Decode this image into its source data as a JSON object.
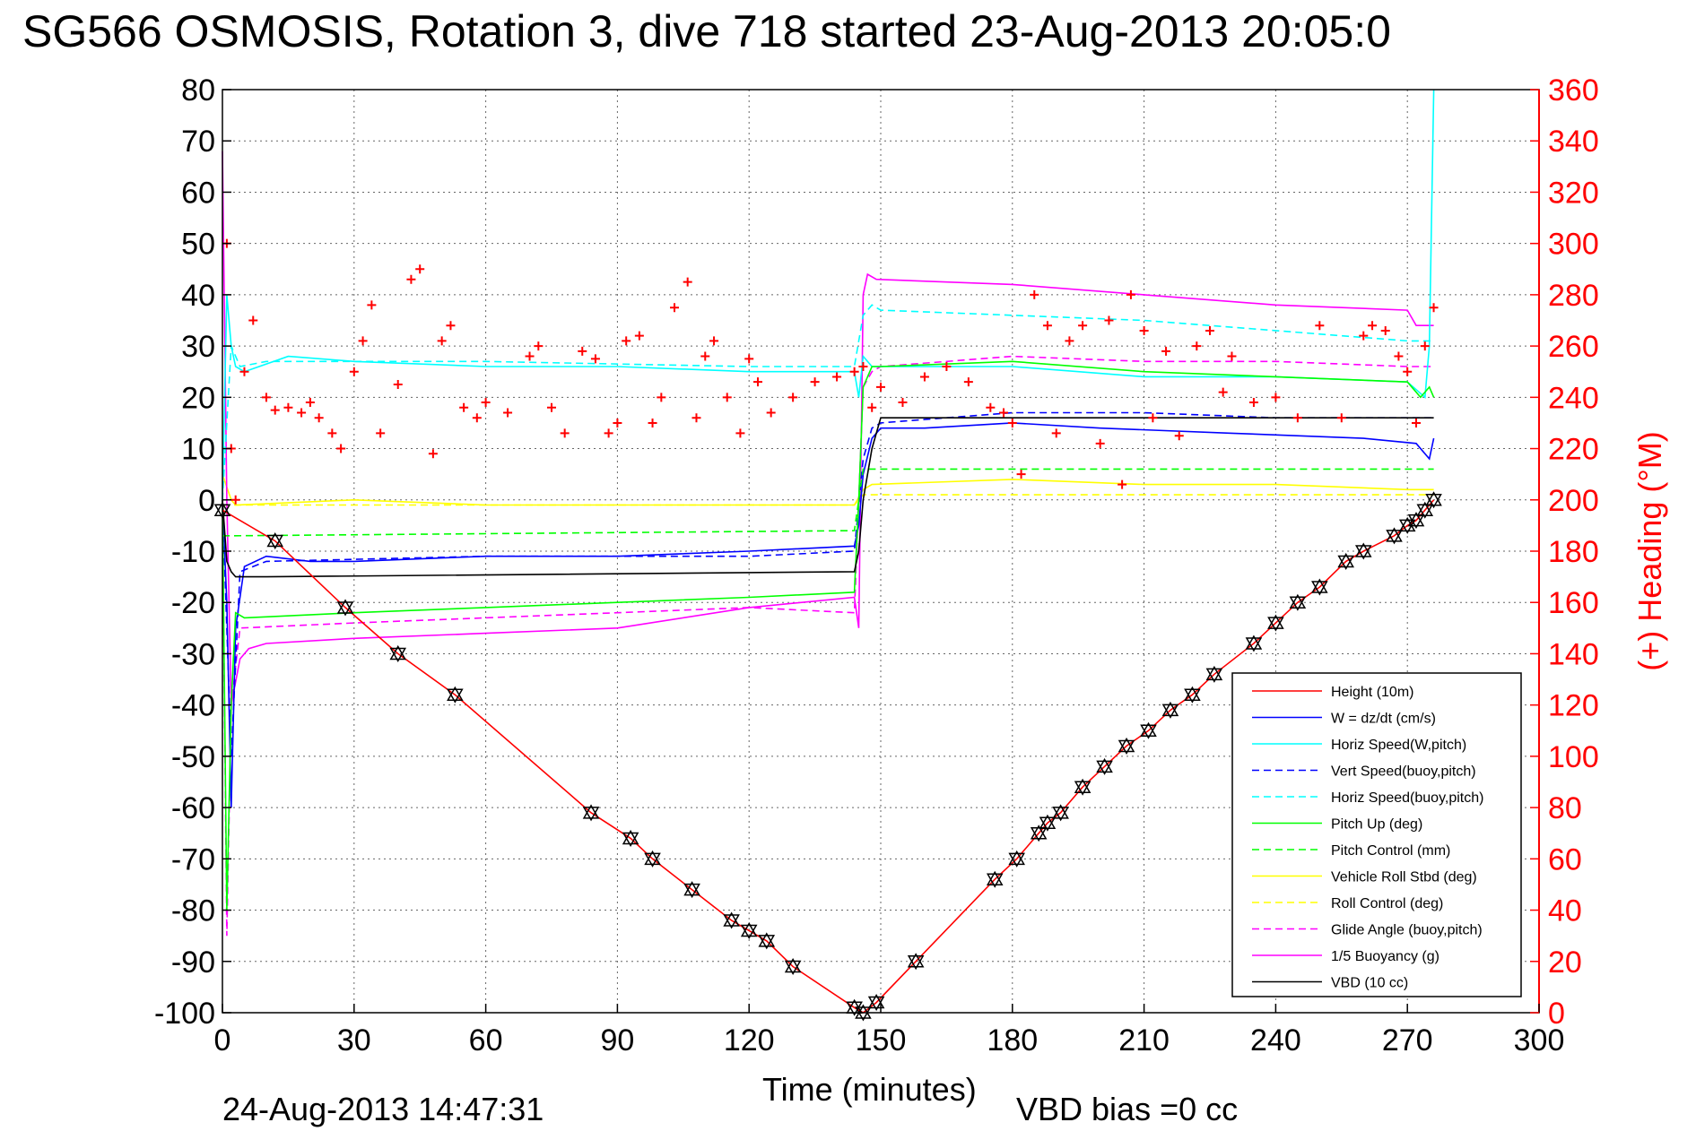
{
  "title": "SG566 OSMOSIS, Rotation 3, dive 718 started 23-Aug-2013 20:05:0",
  "footer": {
    "timestamp": "24-Aug-2013 14:47:31",
    "vbd_bias": "VBD bias =0 cc"
  },
  "chart_data": {
    "type": "line",
    "xlabel": "Time (minutes)",
    "ylabel": "",
    "y2label": "(+) Heading (°M)",
    "xlim": [
      0,
      300
    ],
    "ylim": [
      -100,
      80
    ],
    "y2lim": [
      0,
      360
    ],
    "xticks": [
      0,
      30,
      60,
      90,
      120,
      150,
      180,
      210,
      240,
      270,
      300
    ],
    "yticks": [
      -100,
      -90,
      -80,
      -70,
      -60,
      -50,
      -40,
      -30,
      -20,
      -10,
      0,
      10,
      20,
      30,
      40,
      50,
      60,
      70,
      80
    ],
    "y2ticks": [
      0,
      20,
      40,
      60,
      80,
      100,
      120,
      140,
      160,
      180,
      200,
      220,
      240,
      260,
      280,
      300,
      320,
      340,
      360
    ],
    "grid": true,
    "legend_position": "bottom-right",
    "colors": {
      "height": "#ff0000",
      "w": "#0000ff",
      "horiz_speed": "#00ffff",
      "pitch": "#00ff00",
      "roll": "#ffff00",
      "glide": "#ff00ff",
      "vbd": "#000000",
      "heading": "#ff0000"
    },
    "series": [
      {
        "name": "Height (10m)",
        "color": "#ff0000",
        "dash": "",
        "x": [
          0,
          12,
          28,
          40,
          53,
          84,
          93,
          98,
          107,
          116,
          120,
          124,
          130,
          144,
          146,
          149,
          158,
          176,
          181,
          186,
          188,
          191,
          196,
          201,
          206,
          211,
          216,
          221,
          226,
          235,
          240,
          245,
          250,
          256,
          260,
          267,
          270,
          272,
          274,
          276
        ],
        "y": [
          -2,
          -8,
          -21,
          -30,
          -38,
          -61,
          -66,
          -70,
          -76,
          -82,
          -84,
          -86,
          -91,
          -99,
          -100,
          -98,
          -90,
          -74,
          -70,
          -65,
          -63,
          -61,
          -56,
          -52,
          -48,
          -45,
          -41,
          -38,
          -34,
          -28,
          -24,
          -20,
          -17,
          -12,
          -10,
          -7,
          -5,
          -4,
          -2,
          0
        ]
      },
      {
        "name": "W = dz/dt (cm/s)",
        "color": "#0000ff",
        "dash": "",
        "x": [
          0,
          1,
          2,
          3,
          5,
          10,
          20,
          30,
          60,
          90,
          120,
          144,
          145,
          146,
          148,
          150,
          160,
          180,
          200,
          230,
          260,
          272,
          275,
          276
        ],
        "y": [
          0,
          -20,
          -60,
          -25,
          -13,
          -11,
          -12,
          -12,
          -11,
          -11,
          -10,
          -9,
          -5,
          5,
          12,
          14,
          14,
          15,
          14,
          13,
          12,
          11,
          8,
          12
        ]
      },
      {
        "name": "Horiz Speed(W,pitch)",
        "color": "#00ffff",
        "dash": "",
        "x": [
          0,
          1,
          2,
          3,
          5,
          15,
          30,
          60,
          90,
          120,
          144,
          145,
          146,
          148,
          150,
          180,
          210,
          240,
          270,
          274,
          275,
          276
        ],
        "y": [
          0,
          40,
          30,
          26,
          25,
          28,
          27,
          26,
          26,
          25,
          25,
          20,
          28,
          26,
          26,
          26,
          24,
          24,
          23,
          20,
          30,
          80
        ]
      },
      {
        "name": "Vert Speed(buoy,pitch)",
        "color": "#0000ff",
        "dash": "8,5",
        "x": [
          0,
          2,
          4,
          10,
          60,
          120,
          144,
          146,
          148,
          150,
          180,
          210,
          240,
          270,
          276
        ],
        "y": [
          0,
          -50,
          -14,
          -12,
          -11,
          -11,
          -10,
          8,
          14,
          15,
          17,
          17,
          16,
          16,
          16
        ]
      },
      {
        "name": "Horiz Speed(buoy,pitch)",
        "color": "#00ffff",
        "dash": "8,5",
        "x": [
          0,
          2,
          4,
          10,
          60,
          120,
          144,
          146,
          148,
          150,
          180,
          210,
          240,
          270,
          276
        ],
        "y": [
          0,
          30,
          26,
          27,
          27,
          26,
          26,
          36,
          38,
          37,
          36,
          35,
          33,
          31,
          31
        ]
      },
      {
        "name": "Pitch Up (deg)",
        "color": "#00ff00",
        "dash": "",
        "x": [
          0,
          1,
          2,
          3,
          5,
          30,
          60,
          90,
          120,
          144,
          145,
          146,
          148,
          150,
          180,
          210,
          240,
          270,
          273,
          275,
          276
        ],
        "y": [
          0,
          -80,
          -40,
          -22,
          -23,
          -22,
          -21,
          -20,
          -19,
          -18,
          0,
          22,
          26,
          26,
          27,
          25,
          24,
          23,
          20,
          22,
          20
        ]
      },
      {
        "name": "Pitch Control (mm)",
        "color": "#00ff00",
        "dash": "8,5",
        "x": [
          0,
          3,
          144,
          146,
          276
        ],
        "y": [
          -7,
          -7,
          -6,
          6,
          6
        ]
      },
      {
        "name": "Vehicle Roll Stbd (deg)",
        "color": "#ffff00",
        "dash": "",
        "x": [
          0,
          2,
          3,
          30,
          60,
          90,
          120,
          144,
          146,
          148,
          180,
          210,
          240,
          270,
          276
        ],
        "y": [
          5,
          0,
          -1,
          0,
          -1,
          -1,
          -1,
          -1,
          2,
          3,
          4,
          3,
          3,
          2,
          2
        ]
      },
      {
        "name": "Roll Control (deg)",
        "color": "#ffff00",
        "dash": "8,5",
        "x": [
          0,
          3,
          144,
          146,
          276
        ],
        "y": [
          -1,
          -1,
          -1,
          1,
          1
        ]
      },
      {
        "name": "Glide Angle (buoy,pitch)",
        "color": "#ff00ff",
        "dash": "8,5",
        "x": [
          0,
          1,
          2,
          4,
          30,
          60,
          90,
          120,
          144,
          146,
          148,
          150,
          180,
          210,
          240,
          270,
          276
        ],
        "y": [
          0,
          -85,
          -40,
          -25,
          -24,
          -23,
          -22,
          -21,
          -22,
          22,
          25,
          26,
          28,
          27,
          27,
          26,
          26
        ]
      },
      {
        "name": "1/5 Buoyancy (g)",
        "color": "#ff00ff",
        "dash": "",
        "x": [
          0,
          1,
          2,
          4,
          6,
          10,
          30,
          60,
          90,
          120,
          144,
          145,
          146,
          147,
          149,
          180,
          210,
          240,
          270,
          272,
          276
        ],
        "y": [
          68,
          0,
          -40,
          -31,
          -29,
          -28,
          -27,
          -26,
          -25,
          -21,
          -19,
          -25,
          40,
          44,
          43,
          42,
          40,
          38,
          37,
          34,
          34
        ]
      },
      {
        "name": "VBD (10 cc)",
        "color": "#000000",
        "dash": "",
        "x": [
          0,
          1,
          2,
          3,
          10,
          144,
          145,
          146,
          147,
          148,
          150,
          276
        ],
        "y": [
          0,
          -12,
          -14,
          -15,
          -15,
          -14,
          -10,
          0,
          5,
          10,
          16,
          16
        ]
      }
    ],
    "heading_markers": {
      "name": "(+) Heading (°M)",
      "x": [
        1,
        2,
        3,
        5,
        7,
        10,
        12,
        15,
        18,
        20,
        22,
        25,
        27,
        30,
        32,
        34,
        36,
        40,
        43,
        45,
        48,
        50,
        52,
        55,
        58,
        60,
        65,
        70,
        72,
        75,
        78,
        82,
        85,
        88,
        90,
        92,
        95,
        98,
        100,
        103,
        106,
        108,
        110,
        112,
        115,
        118,
        120,
        122,
        125,
        130,
        135,
        140,
        144,
        146,
        148,
        150,
        155,
        160,
        165,
        170,
        175,
        178,
        180,
        182,
        185,
        188,
        190,
        193,
        196,
        200,
        202,
        205,
        207,
        210,
        212,
        215,
        218,
        222,
        225,
        228,
        230,
        235,
        240,
        245,
        250,
        255,
        260,
        262,
        265,
        268,
        270,
        272,
        274,
        276
      ],
      "y": [
        300,
        220,
        200,
        250,
        270,
        240,
        235,
        236,
        234,
        238,
        232,
        226,
        220,
        250,
        262,
        276,
        226,
        245,
        286,
        290,
        218,
        262,
        268,
        236,
        232,
        238,
        234,
        256,
        260,
        236,
        226,
        258,
        255,
        226,
        230,
        262,
        264,
        230,
        240,
        275,
        285,
        232,
        256,
        262,
        240,
        226,
        255,
        246,
        234,
        240,
        246,
        248,
        250,
        252,
        236,
        244,
        238,
        248,
        252,
        246,
        236,
        234,
        230,
        210,
        280,
        268,
        226,
        262,
        268,
        222,
        270,
        206,
        280,
        266,
        232,
        258,
        225,
        260,
        266,
        242,
        256,
        238,
        240,
        232,
        268,
        232,
        264,
        268,
        266,
        256,
        250,
        230,
        260,
        275
      ]
    }
  }
}
